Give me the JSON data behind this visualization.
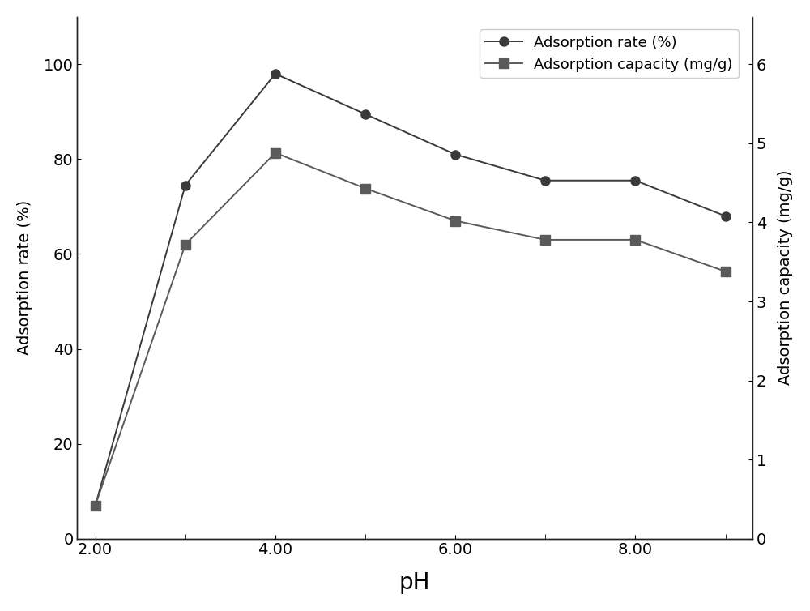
{
  "ph": [
    2,
    3,
    4,
    5,
    6,
    7,
    8,
    9
  ],
  "adsorption_rate": [
    7.0,
    74.5,
    98.0,
    89.5,
    81.0,
    75.5,
    75.5,
    68.0
  ],
  "adsorption_capacity": [
    0.42,
    3.72,
    4.88,
    4.43,
    4.02,
    3.78,
    3.78,
    3.38
  ],
  "rate_color": "#3a3a3a",
  "capacity_color": "#5a5a5a",
  "marker_rate": "o",
  "marker_capacity": "s",
  "line_style": "-",
  "xlabel": "pH",
  "ylabel_left": "Adsorption rate (%)",
  "ylabel_right": "Adsorption capacity (mg/g)",
  "ylim_left": [
    0,
    110
  ],
  "ylim_right": [
    0,
    6.6
  ],
  "yticks_left": [
    0,
    20,
    40,
    60,
    80,
    100
  ],
  "yticks_right": [
    0,
    1,
    2,
    3,
    4,
    5,
    6
  ],
  "xticks_major": [
    2,
    4,
    6,
    8
  ],
  "xtick_labels": [
    "2.00",
    "4.00",
    "6.00",
    "8.00"
  ],
  "xticks_minor": [
    3,
    5,
    7,
    9
  ],
  "xlim": [
    1.8,
    9.3
  ],
  "legend_rate": "Adsorption rate (%)",
  "legend_capacity": "Adsorption capacity (mg/g)",
  "markersize": 8,
  "linewidth": 1.4,
  "xlabel_fontsize": 20,
  "ylabel_fontsize": 14,
  "tick_fontsize": 14,
  "legend_fontsize": 13,
  "background_color": "#ffffff"
}
